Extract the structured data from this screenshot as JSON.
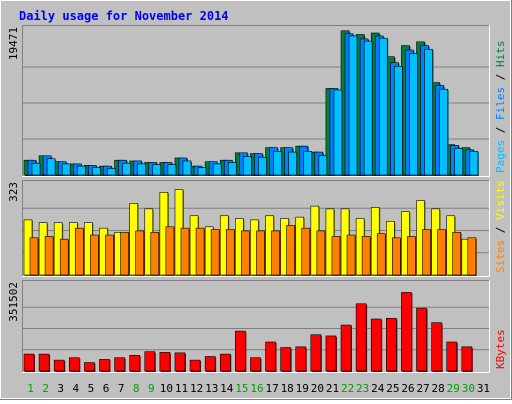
{
  "chart_data": {
    "type": "bar",
    "title": "Daily usage for November 2014",
    "x": [
      1,
      2,
      3,
      4,
      5,
      6,
      7,
      8,
      9,
      10,
      11,
      12,
      13,
      14,
      15,
      16,
      17,
      18,
      19,
      20,
      21,
      22,
      23,
      24,
      25,
      26,
      27,
      28,
      29,
      30,
      31
    ],
    "weekend_days": [
      1,
      2,
      8,
      9,
      15,
      16,
      22,
      23,
      29,
      30
    ],
    "colors": {
      "background": "#c0c0c0",
      "frame": "#ffffff",
      "title": "#0000ff",
      "hits": "#008040",
      "files": "#0080ff",
      "pages": "#00c0ff",
      "visits": "#ffff00",
      "sites": "#ff8000",
      "kbytes": "#ff0000",
      "weekend_label": "#00a000",
      "weekday_label": "#000000"
    },
    "panels": [
      {
        "name": "hits-files-pages",
        "ymax_label": "19471",
        "ymax": 19471,
        "legend": [
          {
            "text": "Pages",
            "color": "#00c0ff"
          },
          {
            "text": " / ",
            "color": "#000000"
          },
          {
            "text": "Files",
            "color": "#0080ff"
          },
          {
            "text": " / ",
            "color": "#000000"
          },
          {
            "text": "Hits",
            "color": "#008040"
          }
        ],
        "series": [
          {
            "name": "Hits",
            "color": "#008040",
            "values": [
              2000,
              2600,
              1800,
              1500,
              1300,
              1200,
              2000,
              1900,
              1700,
              1700,
              2300,
              1200,
              1800,
              2000,
              3000,
              2900,
              3700,
              3700,
              3900,
              3100,
              11700,
              19500,
              19000,
              19200,
              16000,
              17500,
              18000,
              12500,
              4100,
              3700,
              0
            ]
          },
          {
            "name": "Files",
            "color": "#0080ff",
            "values": [
              2000,
              2600,
              1800,
              1500,
              1300,
              1200,
              2000,
              1900,
              1700,
              1700,
              2300,
              1200,
              1800,
              2000,
              3000,
              2900,
              3700,
              3700,
              3900,
              3100,
              11700,
              19100,
              18400,
              18800,
              15200,
              16900,
              17500,
              12100,
              4000,
              3400,
              0
            ]
          },
          {
            "name": "Pages",
            "color": "#00c0ff",
            "values": [
              1600,
              2200,
              1500,
              1200,
              1000,
              900,
              1600,
              1500,
              1400,
              1400,
              1900,
              1000,
              1500,
              1700,
              2500,
              2400,
              3200,
              3100,
              3200,
              2600,
              11500,
              18800,
              18100,
              18500,
              14700,
              16400,
              17000,
              11600,
              3600,
              3200,
              0
            ]
          }
        ]
      },
      {
        "name": "visits-sites",
        "ymax_label": "323",
        "ymax": 323,
        "legend": [
          {
            "text": "Sites",
            "color": "#ff8000"
          },
          {
            "text": " / ",
            "color": "#000000"
          },
          {
            "text": "Visits",
            "color": "#ffff00"
          }
        ],
        "series": [
          {
            "name": "Visits",
            "color": "#ffff00",
            "values": [
              200,
              190,
              190,
              190,
              190,
              170,
              155,
              260,
              240,
              300,
              310,
              215,
              175,
              215,
              205,
              200,
              215,
              205,
              210,
              250,
              240,
              240,
              205,
              245,
              195,
              230,
              270,
              240,
              215,
              130,
              0
            ]
          },
          {
            "name": "Sites",
            "color": "#ff8000",
            "values": [
              135,
              140,
              130,
              170,
              145,
              145,
              155,
              160,
              155,
              175,
              170,
              170,
              165,
              165,
              160,
              160,
              160,
              180,
              170,
              160,
              140,
              145,
              140,
              150,
              135,
              140,
              165,
              165,
              155,
              135,
              0
            ]
          }
        ]
      },
      {
        "name": "kbytes",
        "ymax_label": "351502",
        "ymax": 351502,
        "legend": [
          {
            "text": "KBytes",
            "color": "#ff0000"
          }
        ],
        "series": [
          {
            "name": "KBytes",
            "color": "#ff0000",
            "values": [
              70000,
              70000,
              45000,
              55000,
              35000,
              48000,
              55000,
              65000,
              80000,
              77000,
              75000,
              45000,
              60000,
              70000,
              165000,
              55000,
              120000,
              97000,
              100000,
              150000,
              145000,
              190000,
              278000,
              215000,
              218000,
              325000,
              260000,
              200000,
              120000,
              100000,
              0
            ]
          }
        ]
      }
    ]
  }
}
